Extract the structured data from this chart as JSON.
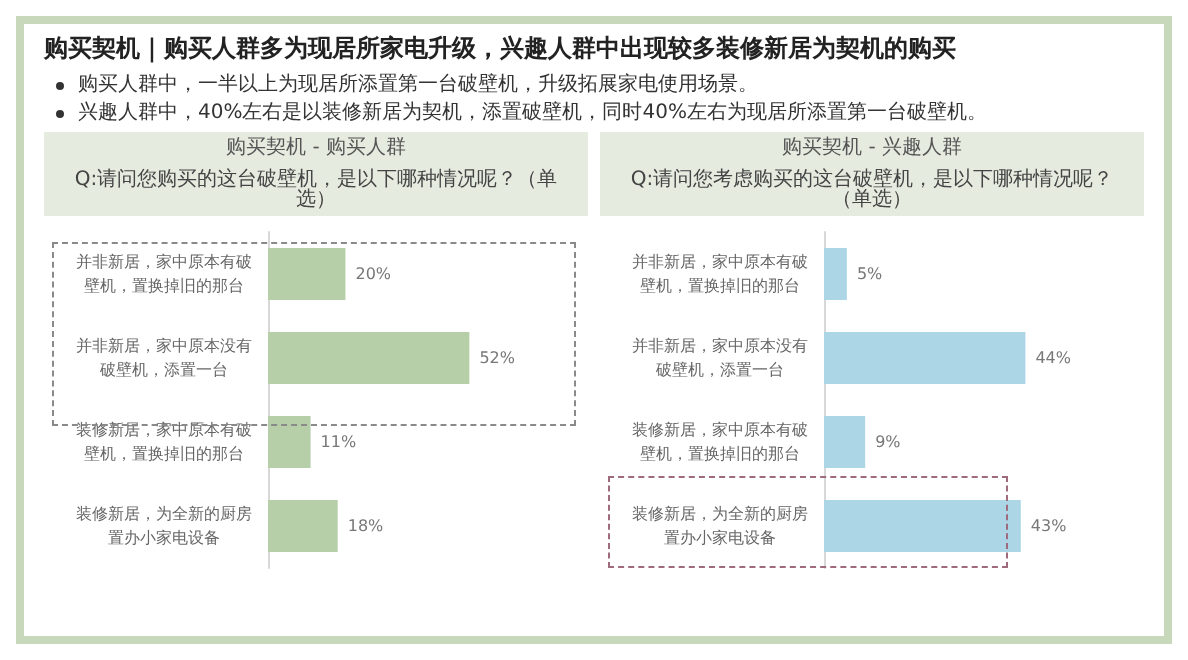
{
  "chart_data": [
    {
      "type": "bar",
      "orientation": "horizontal",
      "title": "购买契机 - 购买人群",
      "subtitle": "Q:请问您购买的这台破壁机，是以下哪种情况呢？（单选）",
      "annotations": [
        "购买契机｜购买人群多为现居所家电升级，兴趣人群中出现较多装修新居为契机的购买",
        "购买人群中，一半以上为现居所添置第一台破壁机，升级拓展家电使用场景。",
        "兴趣人群中，40%左右是以装修新居为契机，添置破壁机，同时40%左右为现居所添置第一台破壁机。"
      ],
      "categories": [
        "并非新居，家中原本有破壁机，置换掉旧的那台",
        "并非新居，家中原本没有破壁机，添置一台",
        "装修新居，家中原本有破壁机，置换掉旧的那台",
        "装修新居，为全新的厨房置办小家电设备"
      ],
      "values": [
        20,
        52,
        11,
        18
      ],
      "value_labels": [
        "20%",
        "52%",
        "11%",
        "18%"
      ],
      "color": "#b6cfa9"
    },
    {
      "type": "bar",
      "orientation": "horizontal",
      "title": "购买契机 - 兴趣人群",
      "subtitle": "Q:请问您考虑购买的这台破壁机，是以下哪种情况呢？（单选）",
      "categories": [
        "并非新居，家中原本有破壁机，置换掉旧的那台",
        "并非新居，家中原本没有破壁机，添置一台",
        "装修新居，家中原本有破壁机，置换掉旧的那台",
        "装修新居，为全新的厨房置办小家电设备"
      ],
      "values": [
        5,
        44,
        9,
        43
      ],
      "value_labels": [
        "5%",
        "44%",
        "9%",
        "43%"
      ],
      "color": "#acd6e6"
    }
  ]
}
